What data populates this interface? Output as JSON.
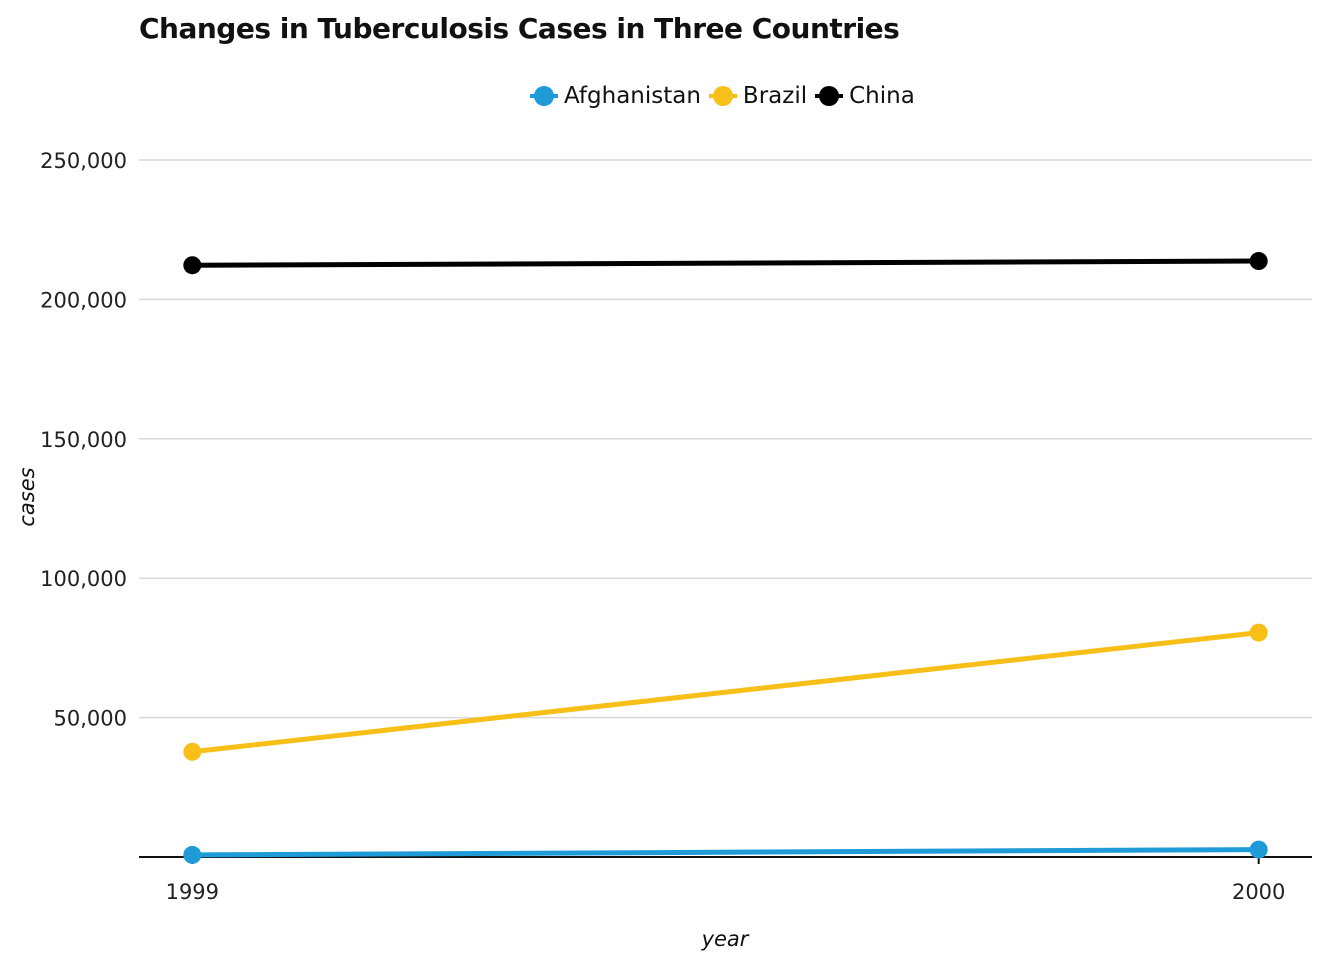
{
  "chart_data": {
    "type": "line",
    "title": "Changes in Tuberculosis Cases in Three Countries",
    "xlabel": "year",
    "ylabel": "cases",
    "x": [
      1999,
      2000
    ],
    "x_tick_labels": [
      "1999",
      "2000"
    ],
    "xlim": [
      1998.95,
      2000.05
    ],
    "ylim": [
      0,
      250000
    ],
    "y_ticks": [
      50000,
      100000,
      150000,
      200000,
      250000
    ],
    "y_tick_labels": [
      "50,000",
      "100,000",
      "150,000",
      "200,000",
      "250,000"
    ],
    "grid": "horizontal major",
    "legend_position": "top",
    "series": [
      {
        "name": "Afghanistan",
        "color": "#1f9bd7",
        "values": [
          745,
          2666
        ]
      },
      {
        "name": "Brazil",
        "color": "#f7bf18",
        "values": [
          37737,
          80488
        ]
      },
      {
        "name": "China",
        "color": "#000000",
        "values": [
          212258,
          213766
        ]
      }
    ]
  }
}
